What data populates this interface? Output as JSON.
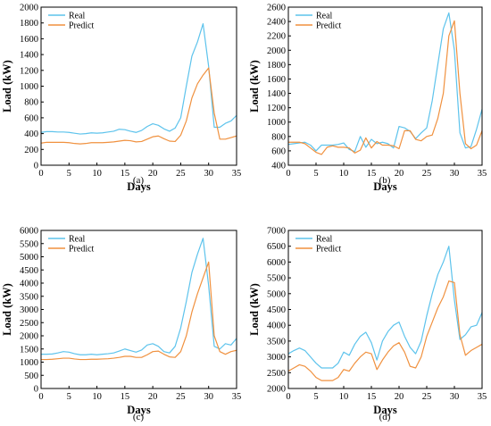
{
  "colors": {
    "real": "#5dc3ec",
    "predict": "#f0913f"
  },
  "chart_data": [
    {
      "type": "line",
      "panel_label": "(a)",
      "xlabel": "Days",
      "ylabel": "Load (kW)",
      "xlim": [
        0,
        35
      ],
      "ylim": [
        0,
        2000
      ],
      "xticks": [
        0,
        5,
        10,
        15,
        20,
        25,
        30,
        35
      ],
      "yticks": [
        0,
        200,
        400,
        600,
        800,
        1000,
        1200,
        1400,
        1600,
        1800,
        2000
      ],
      "legend_position": "top-left",
      "series": [
        {
          "name": "Real",
          "color_key": "real",
          "x": [
            0,
            1,
            2,
            3,
            4,
            5,
            6,
            7,
            8,
            9,
            10,
            11,
            12,
            13,
            14,
            15,
            16,
            17,
            18,
            19,
            20,
            21,
            22,
            23,
            24,
            25,
            26,
            27,
            28,
            29,
            30,
            31,
            32,
            33,
            34,
            35
          ],
          "values": [
            415,
            425,
            425,
            420,
            420,
            415,
            405,
            395,
            400,
            410,
            405,
            410,
            420,
            430,
            455,
            450,
            430,
            415,
            440,
            490,
            525,
            505,
            460,
            430,
            470,
            600,
            1000,
            1380,
            1560,
            1790,
            1250,
            480,
            480,
            530,
            560,
            630
          ]
        },
        {
          "name": "Predict",
          "color_key": "predict",
          "x": [
            0,
            1,
            2,
            3,
            4,
            5,
            6,
            7,
            8,
            9,
            10,
            11,
            12,
            13,
            14,
            15,
            16,
            17,
            18,
            19,
            20,
            21,
            22,
            23,
            24,
            25,
            26,
            27,
            28,
            29,
            30,
            31,
            32,
            33,
            34,
            35
          ],
          "values": [
            280,
            290,
            290,
            290,
            290,
            285,
            275,
            270,
            275,
            285,
            285,
            285,
            290,
            295,
            305,
            315,
            310,
            295,
            300,
            330,
            360,
            370,
            335,
            305,
            300,
            380,
            560,
            850,
            1030,
            1140,
            1230,
            660,
            330,
            330,
            350,
            370
          ]
        }
      ]
    },
    {
      "type": "line",
      "panel_label": "(b)",
      "xlabel": "Days",
      "ylabel": "Load (kW)",
      "xlim": [
        0,
        35
      ],
      "ylim": [
        400,
        2600
      ],
      "xticks": [
        0,
        5,
        10,
        15,
        20,
        25,
        30,
        35
      ],
      "yticks": [
        400,
        600,
        800,
        1000,
        1200,
        1400,
        1600,
        1800,
        2000,
        2200,
        2400,
        2600
      ],
      "legend_position": "top-left",
      "series": [
        {
          "name": "Real",
          "color_key": "real",
          "x": [
            0,
            1,
            2,
            3,
            4,
            5,
            6,
            7,
            8,
            9,
            10,
            11,
            12,
            13,
            14,
            15,
            16,
            17,
            18,
            19,
            20,
            21,
            22,
            23,
            24,
            25,
            26,
            27,
            28,
            29,
            30,
            31,
            32,
            33,
            34,
            35
          ],
          "values": [
            690,
            700,
            710,
            720,
            680,
            600,
            680,
            680,
            680,
            690,
            710,
            620,
            590,
            800,
            650,
            760,
            700,
            720,
            700,
            640,
            940,
            920,
            870,
            770,
            850,
            920,
            1300,
            1800,
            2300,
            2520,
            2000,
            850,
            640,
            660,
            900,
            1180
          ]
        },
        {
          "name": "Predict",
          "color_key": "predict",
          "x": [
            0,
            1,
            2,
            3,
            4,
            5,
            6,
            7,
            8,
            9,
            10,
            11,
            12,
            13,
            14,
            15,
            16,
            17,
            18,
            19,
            20,
            21,
            22,
            23,
            24,
            25,
            26,
            27,
            28,
            29,
            30,
            31,
            32,
            33,
            34,
            35
          ],
          "values": [
            720,
            720,
            720,
            700,
            640,
            580,
            550,
            650,
            670,
            650,
            650,
            640,
            570,
            610,
            780,
            640,
            730,
            680,
            680,
            670,
            630,
            880,
            880,
            760,
            740,
            800,
            820,
            1050,
            1400,
            2200,
            2410,
            1400,
            700,
            630,
            680,
            880
          ]
        }
      ]
    },
    {
      "type": "line",
      "panel_label": "(c)",
      "xlabel": "Days",
      "ylabel": "Load (kW)",
      "xlim": [
        0,
        35
      ],
      "ylim": [
        0,
        6000
      ],
      "xticks": [
        0,
        5,
        10,
        15,
        20,
        25,
        30,
        35
      ],
      "yticks": [
        0,
        500,
        1000,
        1500,
        2000,
        2500,
        3000,
        3500,
        4000,
        4500,
        5000,
        5500,
        6000
      ],
      "legend_position": "top-left",
      "series": [
        {
          "name": "Real",
          "color_key": "real",
          "x": [
            0,
            1,
            2,
            3,
            4,
            5,
            6,
            7,
            8,
            9,
            10,
            11,
            12,
            13,
            14,
            15,
            16,
            17,
            18,
            19,
            20,
            21,
            22,
            23,
            24,
            25,
            26,
            27,
            28,
            29,
            30,
            31,
            32,
            33,
            34,
            35
          ],
          "values": [
            1300,
            1300,
            1310,
            1350,
            1400,
            1380,
            1320,
            1280,
            1280,
            1300,
            1280,
            1300,
            1320,
            1350,
            1420,
            1500,
            1440,
            1380,
            1460,
            1650,
            1700,
            1600,
            1400,
            1350,
            1600,
            2300,
            3300,
            4400,
            5100,
            5700,
            3900,
            1600,
            1500,
            1700,
            1650,
            1900
          ]
        },
        {
          "name": "Predict",
          "color_key": "predict",
          "x": [
            0,
            1,
            2,
            3,
            4,
            5,
            6,
            7,
            8,
            9,
            10,
            11,
            12,
            13,
            14,
            15,
            16,
            17,
            18,
            19,
            20,
            21,
            22,
            23,
            24,
            25,
            26,
            27,
            28,
            29,
            30,
            31,
            32,
            33,
            34,
            35
          ],
          "values": [
            1100,
            1100,
            1110,
            1130,
            1150,
            1150,
            1120,
            1100,
            1100,
            1110,
            1110,
            1120,
            1130,
            1150,
            1180,
            1220,
            1220,
            1180,
            1180,
            1280,
            1400,
            1420,
            1300,
            1200,
            1180,
            1400,
            2000,
            2900,
            3600,
            4200,
            4800,
            2000,
            1400,
            1300,
            1400,
            1450
          ]
        }
      ]
    },
    {
      "type": "line",
      "panel_label": "(d)",
      "xlabel": "Days",
      "ylabel": "Load (kW)",
      "xlim": [
        0,
        35
      ],
      "ylim": [
        2000,
        7000
      ],
      "xticks": [
        0,
        5,
        10,
        15,
        20,
        25,
        30,
        35
      ],
      "yticks": [
        2000,
        2500,
        3000,
        3500,
        4000,
        4500,
        5000,
        5500,
        6000,
        6500,
        7000
      ],
      "legend_position": "top-left",
      "series": [
        {
          "name": "Real",
          "color_key": "real",
          "x": [
            0,
            1,
            2,
            3,
            4,
            5,
            6,
            7,
            8,
            9,
            10,
            11,
            12,
            13,
            14,
            15,
            16,
            17,
            18,
            19,
            20,
            21,
            22,
            23,
            24,
            25,
            26,
            27,
            28,
            29,
            30,
            31,
            32,
            33,
            34,
            35
          ],
          "values": [
            3100,
            3200,
            3280,
            3200,
            3000,
            2800,
            2650,
            2650,
            2650,
            2800,
            3150,
            3050,
            3400,
            3650,
            3780,
            3450,
            2900,
            3500,
            3800,
            4000,
            4100,
            3650,
            3300,
            3100,
            3500,
            4300,
            5000,
            5600,
            6000,
            6500,
            4800,
            3550,
            3700,
            3950,
            4000,
            4400
          ]
        },
        {
          "name": "Predict",
          "color_key": "predict",
          "x": [
            0,
            1,
            2,
            3,
            4,
            5,
            6,
            7,
            8,
            9,
            10,
            11,
            12,
            13,
            14,
            15,
            16,
            17,
            18,
            19,
            20,
            21,
            22,
            23,
            24,
            25,
            26,
            27,
            28,
            29,
            30,
            31,
            32,
            33,
            34,
            35
          ],
          "values": [
            2550,
            2650,
            2750,
            2700,
            2550,
            2350,
            2250,
            2250,
            2250,
            2350,
            2600,
            2550,
            2800,
            3000,
            3150,
            3100,
            2600,
            2900,
            3150,
            3350,
            3450,
            3150,
            2700,
            2650,
            3000,
            3650,
            4100,
            4550,
            4900,
            5400,
            5350,
            3700,
            3050,
            3200,
            3300,
            3400
          ]
        }
      ]
    }
  ]
}
